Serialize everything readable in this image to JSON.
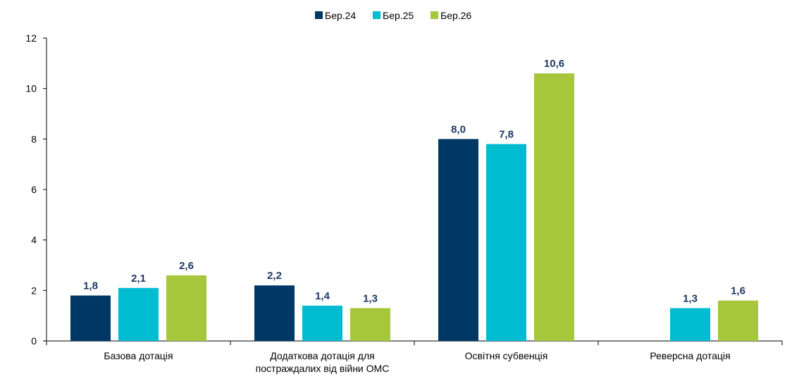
{
  "chart_data": {
    "type": "bar",
    "title": "",
    "xlabel": "",
    "ylabel": "",
    "ylim": [
      0,
      12
    ],
    "yticks": [
      0,
      2,
      4,
      6,
      8,
      10,
      12
    ],
    "grid": false,
    "legend_position": "top-center",
    "categories": [
      [
        "Базова дотація"
      ],
      [
        "Додаткова дотація для",
        "постраждалих від війни ОМС"
      ],
      [
        "Освітня субвенція"
      ],
      [
        "Реверсна дотація"
      ]
    ],
    "series": [
      {
        "name": "Бер.24",
        "color": "#003865",
        "values": [
          1.8,
          2.2,
          8.0,
          null
        ],
        "labels": [
          "1,8",
          "2,2",
          "8,0",
          ""
        ]
      },
      {
        "name": "Бер.25",
        "color": "#00bcd0",
        "values": [
          2.1,
          1.4,
          7.8,
          1.3
        ],
        "labels": [
          "2,1",
          "1,4",
          "7,8",
          "1,3"
        ]
      },
      {
        "name": "Бер.26",
        "color": "#a6c63c",
        "values": [
          2.6,
          1.3,
          10.6,
          1.6
        ],
        "labels": [
          "2,6",
          "1,3",
          "10,6",
          "1,6"
        ]
      }
    ]
  }
}
